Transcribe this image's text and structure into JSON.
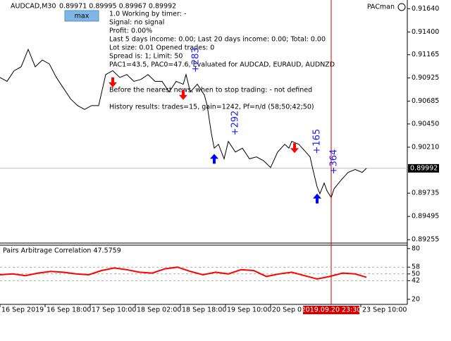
{
  "header": {
    "symbol": "AUDCAD,M30",
    "quote": "0.89971 0.89995 0.89967 0.89992",
    "button": "max",
    "brand": "PACman"
  },
  "info": [
    "1.0 Working by timer:  -",
    "Signal: no signal",
    "Profit: 0.00%",
    "Last 5 days income: 0.00; Last 20 days income: 0.00; Total: 0.00",
    "Lot size: 0.01 Opened trades: 0",
    "Spread is: 1; Limit: 50",
    "PAC1=43.5, PAC0=47.6, Evaluated for AUDCAD, EURAUD, AUDNZD",
    "Before the nearest news, when to stop trading:  - not defined",
    "History results: trades=15, gain=1242, Pf=n/d (58;50;42;50)"
  ],
  "chart_data": [
    {
      "type": "line",
      "color": "#000000",
      "x": [
        0,
        5,
        10,
        15,
        20,
        25,
        30,
        35,
        40,
        45,
        50,
        55,
        60,
        65,
        70,
        75,
        80,
        85,
        90,
        95,
        100,
        105,
        110,
        115,
        120,
        125,
        130,
        132,
        135,
        140,
        145,
        147,
        150,
        152,
        155,
        159,
        162,
        167,
        172,
        177,
        182,
        187,
        192,
        197,
        202,
        205,
        207,
        212,
        217,
        220,
        222,
        225,
        227,
        230,
        232,
        235,
        237,
        242,
        247,
        252,
        257,
        260
      ],
      "values": [
        0.9093,
        0.9089,
        0.91,
        0.9104,
        0.9122,
        0.9104,
        0.9111,
        0.9107,
        0.9093,
        0.9082,
        0.9071,
        0.9064,
        0.906,
        0.9064,
        0.9064,
        0.9096,
        0.91,
        0.9093,
        0.9096,
        0.9089,
        0.9091,
        0.9096,
        0.9089,
        0.9089,
        0.9078,
        0.9089,
        0.9086,
        0.9096,
        0.9078,
        0.9086,
        0.9075,
        0.9064,
        0.9035,
        0.902,
        0.9024,
        0.9009,
        0.9027,
        0.9016,
        0.902,
        0.9009,
        0.9011,
        0.9007,
        0.9,
        0.9016,
        0.9024,
        0.902,
        0.9027,
        0.9024,
        0.9016,
        0.9011,
        0.8998,
        0.898,
        0.8973,
        0.8984,
        0.8976,
        0.8969,
        0.8978,
        0.8987,
        0.8995,
        0.8998,
        0.8995,
        0.89992
      ],
      "xlim": [
        0,
        289
      ],
      "ylim": [
        0.8922,
        0.9173
      ],
      "yticks": [
        {
          "value": 0.9164,
          "label": "0.91640"
        },
        {
          "value": 0.914,
          "label": "0.91400"
        },
        0.91165,
        0.90925,
        0.90685,
        {
          "value": 0.9045,
          "label": "0.90450"
        },
        {
          "value": 0.9021,
          "label": "0.90210"
        },
        0.89735,
        0.89495,
        0.89255
      ],
      "xticks": [
        {
          "value": 0,
          "label": "16 Sep 2019"
        },
        {
          "value": 32,
          "label": "16 Sep 18:00"
        },
        {
          "value": 64,
          "label": "17 Sep 10:00"
        },
        {
          "value": 96,
          "label": "18 Sep 02:00"
        },
        {
          "value": 128,
          "label": "18 Sep 18:00"
        },
        {
          "value": 160,
          "label": "19 Sep 10:00"
        },
        {
          "value": 192,
          "label": "20 Sep 02:00"
        },
        {
          "value": 256,
          "label": "23 Sep 10:00"
        }
      ],
      "last_price": {
        "value": 0.89992,
        "label": "0.89992"
      },
      "cursor": {
        "value": 235,
        "label": "2019.09.20 23:30"
      },
      "signals": [
        {
          "type": "sell",
          "x": 80,
          "price": 0.9088
        },
        {
          "type": "sell",
          "x": 130,
          "price": 0.9075
        },
        {
          "type": "buy",
          "x": 152,
          "price": 0.9009
        },
        {
          "type": "sell",
          "x": 209,
          "price": 0.902
        },
        {
          "type": "buy",
          "x": 225,
          "price": 0.8968
        }
      ],
      "annotations": [
        {
          "text": "+283",
          "x": 139,
          "price": 0.9111
        },
        {
          "text": "+292",
          "x": 167,
          "price": 0.9046
        },
        {
          "text": "+165",
          "x": 225,
          "price": 0.9027
        },
        {
          "text": "+364",
          "x": 237,
          "price": 0.9006
        }
      ]
    },
    {
      "type": "line",
      "title": "Pairs Arbitrage Correlation 47.5759",
      "color": "#ff0000",
      "x": [
        0,
        9,
        18,
        27,
        36,
        45,
        54,
        63,
        72,
        81,
        90,
        99,
        108,
        117,
        126,
        135,
        144,
        153,
        162,
        171,
        180,
        189,
        198,
        207,
        216,
        225,
        234,
        243,
        252,
        260
      ],
      "values": [
        49,
        50,
        48,
        51,
        53,
        52,
        50,
        49,
        54,
        57,
        55,
        52,
        51,
        56,
        58,
        53,
        49,
        52,
        50,
        55,
        54,
        47,
        50,
        52,
        48,
        44,
        47,
        51,
        50,
        46
      ],
      "ylim": [
        14,
        84
      ],
      "yticks": [
        80,
        58,
        50,
        42,
        20
      ],
      "levels": [
        58,
        50,
        42
      ]
    }
  ]
}
